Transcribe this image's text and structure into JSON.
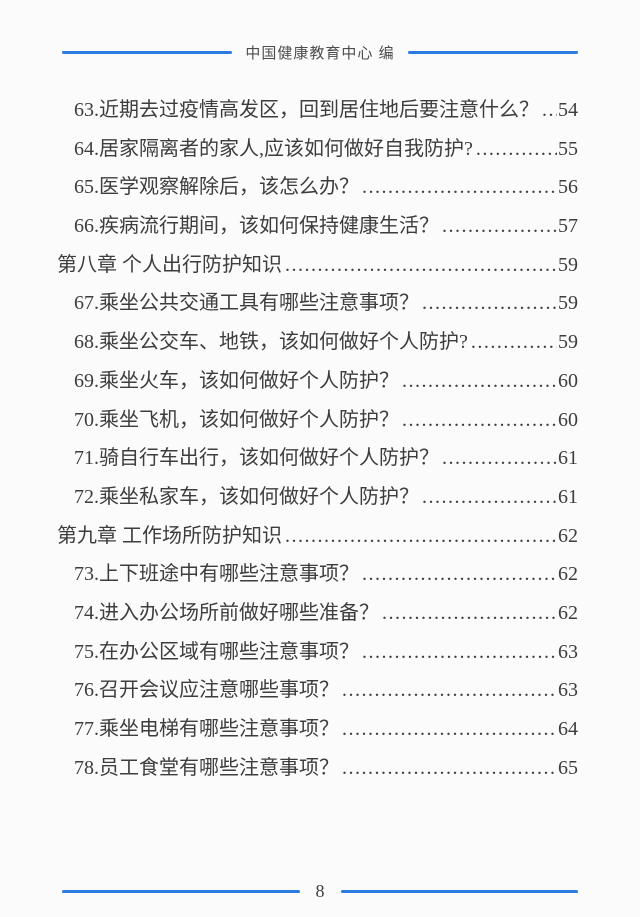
{
  "header": {
    "title": "中国健康教育中心 编"
  },
  "footer": {
    "page_number": "8"
  },
  "colors": {
    "accent_blue": "#2b7ce0",
    "text": "#3d3d3d",
    "page_bg": "#fbfbfb"
  },
  "toc": {
    "entries": [
      {
        "type": "item",
        "label": "63.近期去过疫情高发区，回到居住地后要注意什么？",
        "page": "54"
      },
      {
        "type": "item",
        "label": "64.居家隔离者的家人,应该如何做好自我防护?",
        "page": "55"
      },
      {
        "type": "item",
        "label": "65.医学观察解除后，该怎么办？",
        "page": "56"
      },
      {
        "type": "item",
        "label": "66.疾病流行期间，该如何保持健康生活？",
        "page": "57"
      },
      {
        "type": "chapter",
        "label": "第八章 个人出行防护知识",
        "page": "59"
      },
      {
        "type": "item",
        "label": "67.乘坐公共交通工具有哪些注意事项？",
        "page": "59"
      },
      {
        "type": "item",
        "label": "68.乘坐公交车、地铁，该如何做好个人防护?",
        "page": "59"
      },
      {
        "type": "item",
        "label": "69.乘坐火车，该如何做好个人防护？",
        "page": "60"
      },
      {
        "type": "item",
        "label": "70.乘坐飞机，该如何做好个人防护？",
        "page": "60"
      },
      {
        "type": "item",
        "label": "71.骑自行车出行，该如何做好个人防护？",
        "page": "61"
      },
      {
        "type": "item",
        "label": "72.乘坐私家车，该如何做好个人防护？",
        "page": "61"
      },
      {
        "type": "chapter",
        "label": "第九章 工作场所防护知识",
        "page": "62"
      },
      {
        "type": "item",
        "label": "73.上下班途中有哪些注意事项？",
        "page": "62"
      },
      {
        "type": "item",
        "label": "74.进入办公场所前做好哪些准备？",
        "page": "62"
      },
      {
        "type": "item",
        "label": "75.在办公区域有哪些注意事项？",
        "page": "63"
      },
      {
        "type": "item",
        "label": "76.召开会议应注意哪些事项？",
        "page": "63"
      },
      {
        "type": "item",
        "label": "77.乘坐电梯有哪些注意事项？",
        "page": "64"
      },
      {
        "type": "item",
        "label": "78.员工食堂有哪些注意事项？",
        "page": "65"
      }
    ]
  }
}
